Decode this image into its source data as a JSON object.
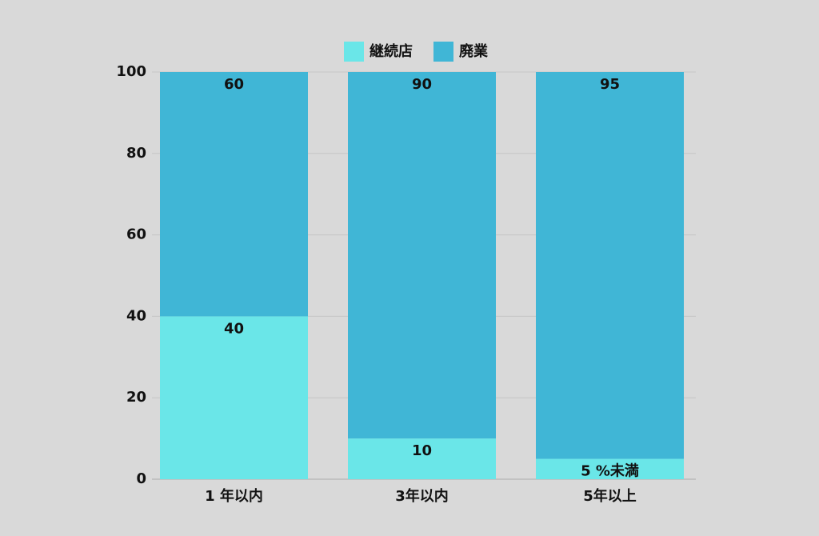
{
  "chart_data": {
    "type": "stacked_bar",
    "categories": [
      "1 年以内",
      "3年以内",
      "5年以上"
    ],
    "series": [
      {
        "name": "継続店",
        "color": "#6ae6e8",
        "values": [
          40,
          10,
          5
        ],
        "value_labels": [
          "40",
          "10",
          "5 %未満"
        ]
      },
      {
        "name": "廃業",
        "color": "#40b6d6",
        "values": [
          60,
          90,
          95
        ]
      }
    ],
    "ylim": [
      0,
      100
    ],
    "yticks": [
      0,
      20,
      40,
      60,
      80,
      100
    ],
    "grid": true,
    "legend": "top"
  }
}
